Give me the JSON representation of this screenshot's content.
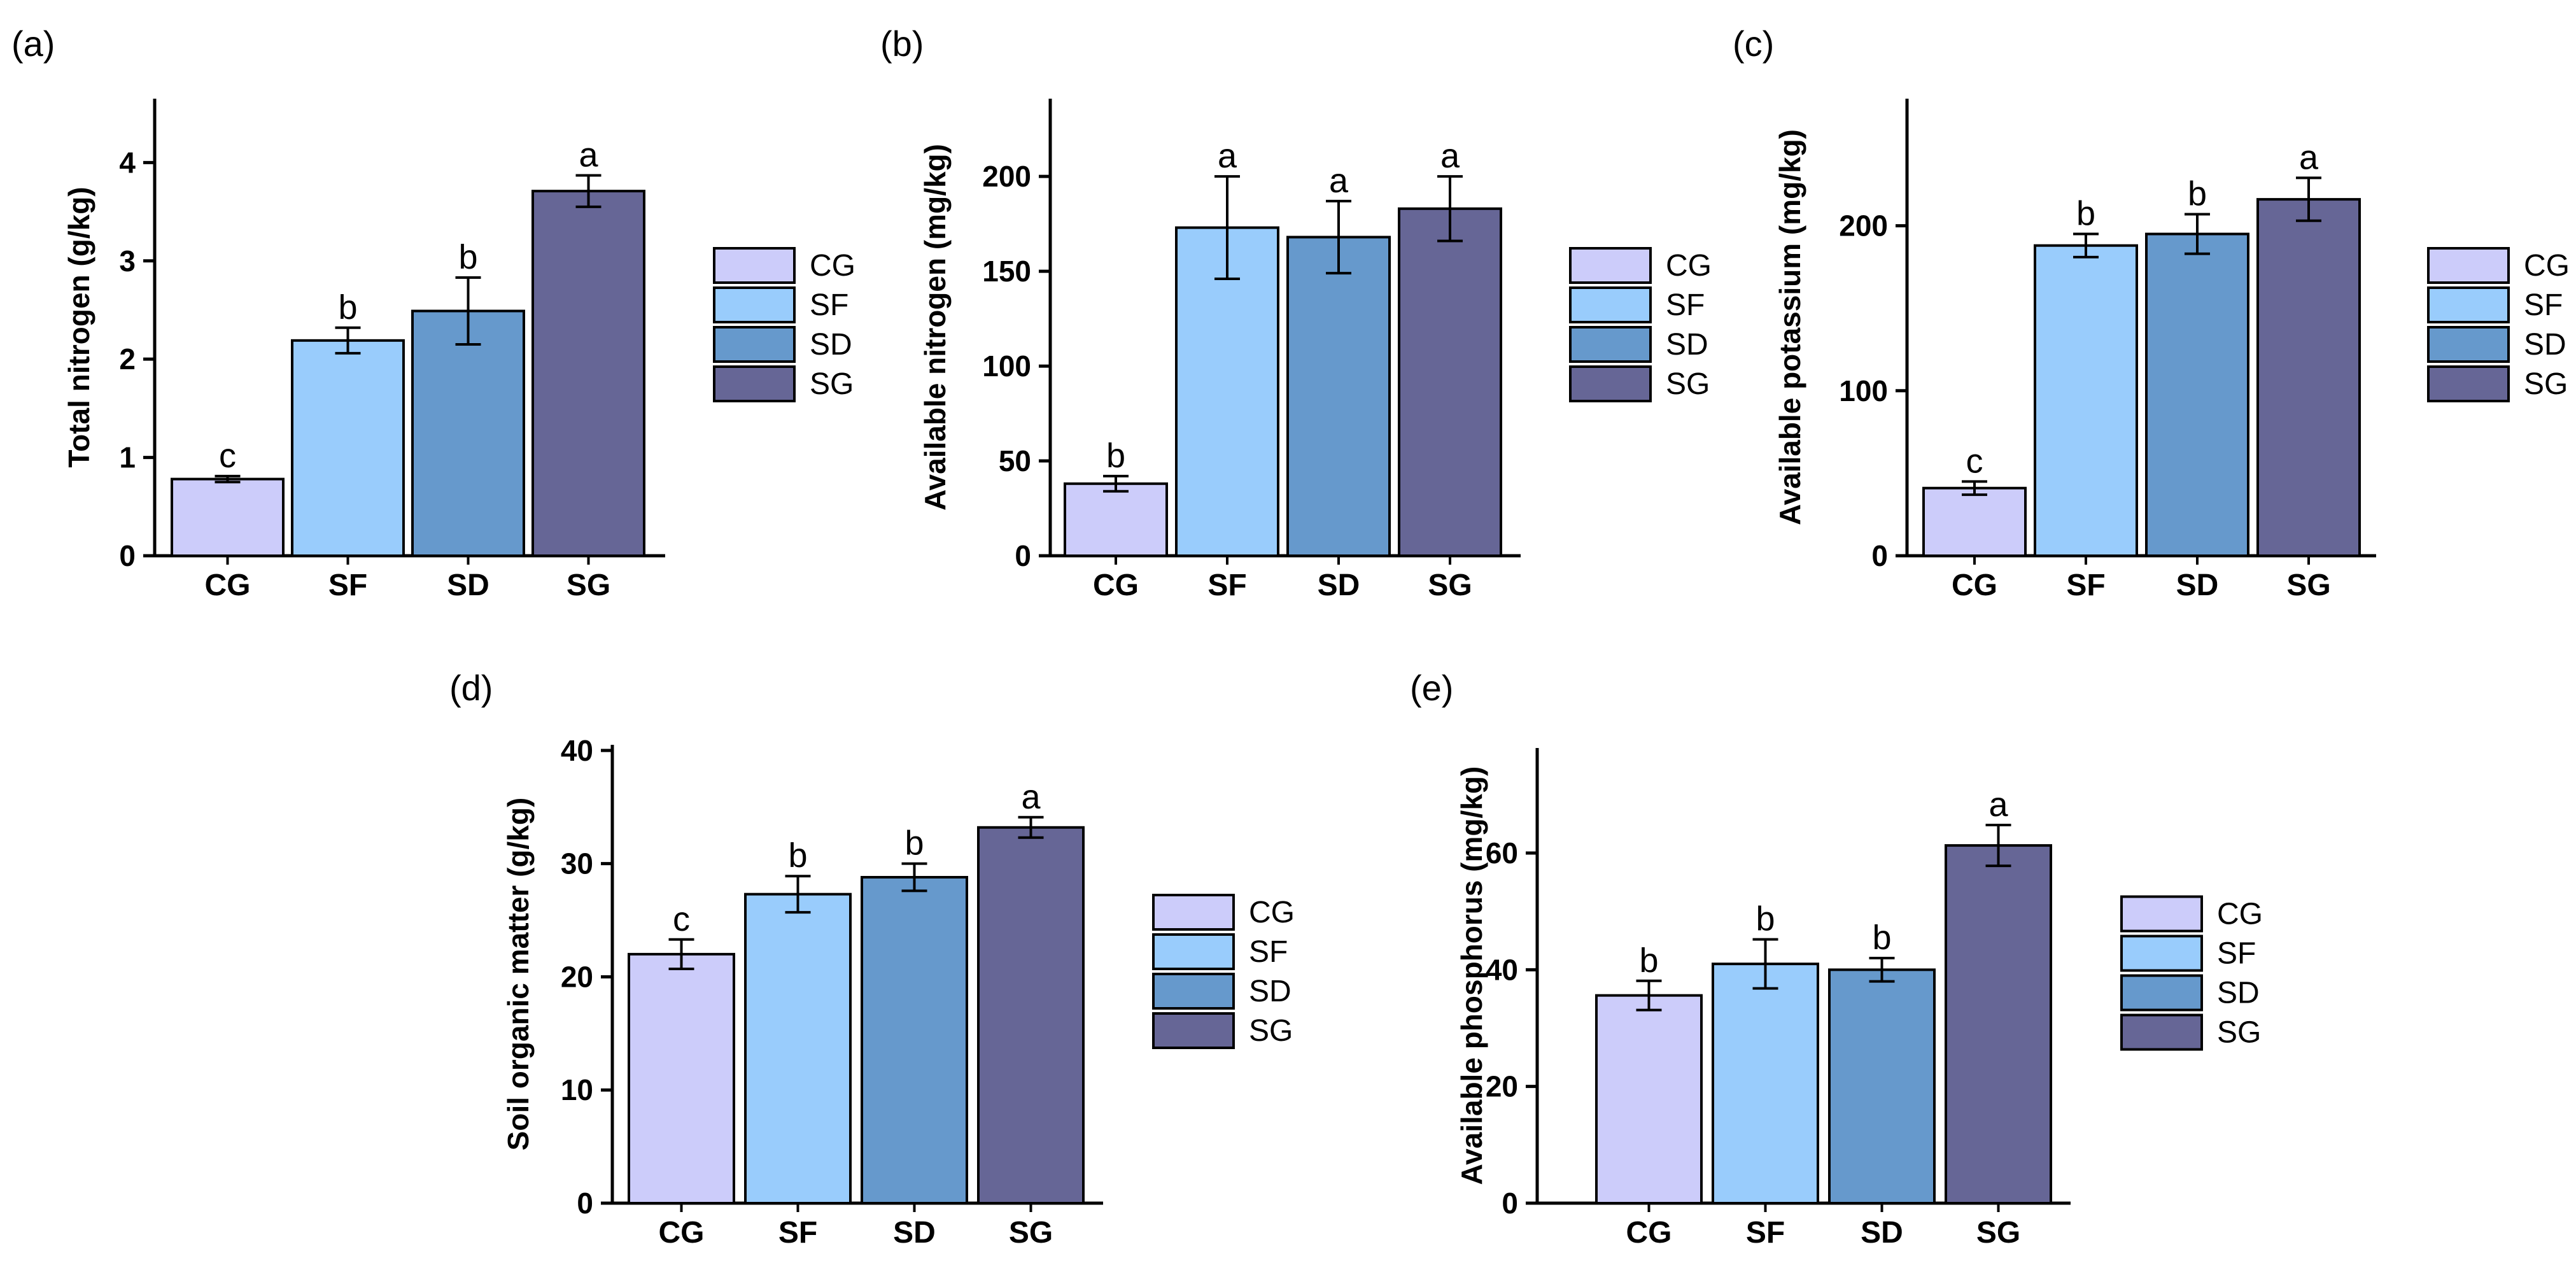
{
  "colors": {
    "CG": "#ccccfa",
    "SF": "#99ccfc",
    "SD": "#6699cc",
    "SG": "#666696",
    "axis": "#000000"
  },
  "legend_items": [
    "CG",
    "SF",
    "SD",
    "SG"
  ],
  "chart_data": [
    {
      "panel_label": "(a)",
      "type": "bar",
      "title": "",
      "xlabel": "",
      "ylabel": "Total nitrogen (g/kg)",
      "categories": [
        "CG",
        "SF",
        "SD",
        "SG"
      ],
      "values": [
        0.78,
        2.19,
        2.49,
        3.71
      ],
      "errors": [
        0.03,
        0.13,
        0.34,
        0.16
      ],
      "letters": [
        "c",
        "b",
        "b",
        "a"
      ],
      "ylim": [
        0,
        4.65
      ],
      "yticks": [
        "0",
        "1",
        "2",
        "3",
        "4"
      ],
      "ytick_values": [
        0,
        1,
        2,
        3,
        4
      ],
      "legend_position": "right"
    },
    {
      "panel_label": "(b)",
      "type": "bar",
      "title": "",
      "xlabel": "",
      "ylabel": "Available nitrogen (mg/kg)",
      "categories": [
        "CG",
        "SF",
        "SD",
        "SG"
      ],
      "values": [
        38,
        173,
        168,
        183
      ],
      "errors": [
        4,
        27,
        19,
        17
      ],
      "letters": [
        "b",
        "a",
        "a",
        "a"
      ],
      "ylim": [
        0,
        241
      ],
      "yticks": [
        "0",
        "50",
        "100",
        "150",
        "200"
      ],
      "ytick_values": [
        0,
        50,
        100,
        150,
        200
      ],
      "legend_position": "right"
    },
    {
      "panel_label": "(c)",
      "type": "bar",
      "title": "",
      "xlabel": "",
      "ylabel": "Available potassium (mg/kg)",
      "categories": [
        "CG",
        "SF",
        "SD",
        "SG"
      ],
      "values": [
        41,
        188,
        195,
        216
      ],
      "errors": [
        4,
        7,
        12,
        13
      ],
      "letters": [
        "c",
        "b",
        "b",
        "a"
      ],
      "ylim": [
        0,
        277
      ],
      "yticks": [
        "0",
        "100",
        "200"
      ],
      "ytick_values": [
        0,
        100,
        200
      ],
      "legend_position": "right"
    },
    {
      "panel_label": "(d)",
      "type": "bar",
      "title": "",
      "xlabel": "",
      "ylabel": "Soil organic matter (g/kg)",
      "categories": [
        "CG",
        "SF",
        "SD",
        "SG"
      ],
      "values": [
        22.0,
        27.3,
        28.8,
        33.2
      ],
      "errors": [
        1.3,
        1.6,
        1.2,
        0.9
      ],
      "letters": [
        "c",
        "b",
        "b",
        "a"
      ],
      "ylim": [
        0,
        40.5
      ],
      "yticks": [
        "0",
        "10",
        "20",
        "30",
        "40"
      ],
      "ytick_values": [
        0,
        10,
        20,
        30,
        40
      ],
      "legend_position": "right"
    },
    {
      "panel_label": "(e)",
      "type": "bar",
      "title": "",
      "xlabel": "",
      "ylabel": "Available phosphorus (mg/kg)",
      "categories": [
        "CG",
        "SF",
        "SD",
        "SG"
      ],
      "values": [
        35.6,
        41.0,
        40.0,
        61.3
      ],
      "errors": [
        2.5,
        4.2,
        2.0,
        3.5
      ],
      "letters": [
        "b",
        "b",
        "b",
        "a"
      ],
      "ylim": [
        0,
        78
      ],
      "yticks": [
        "0",
        "20",
        "40",
        "60"
      ],
      "ytick_values": [
        0,
        20,
        40,
        60
      ],
      "legend_position": "right"
    }
  ]
}
